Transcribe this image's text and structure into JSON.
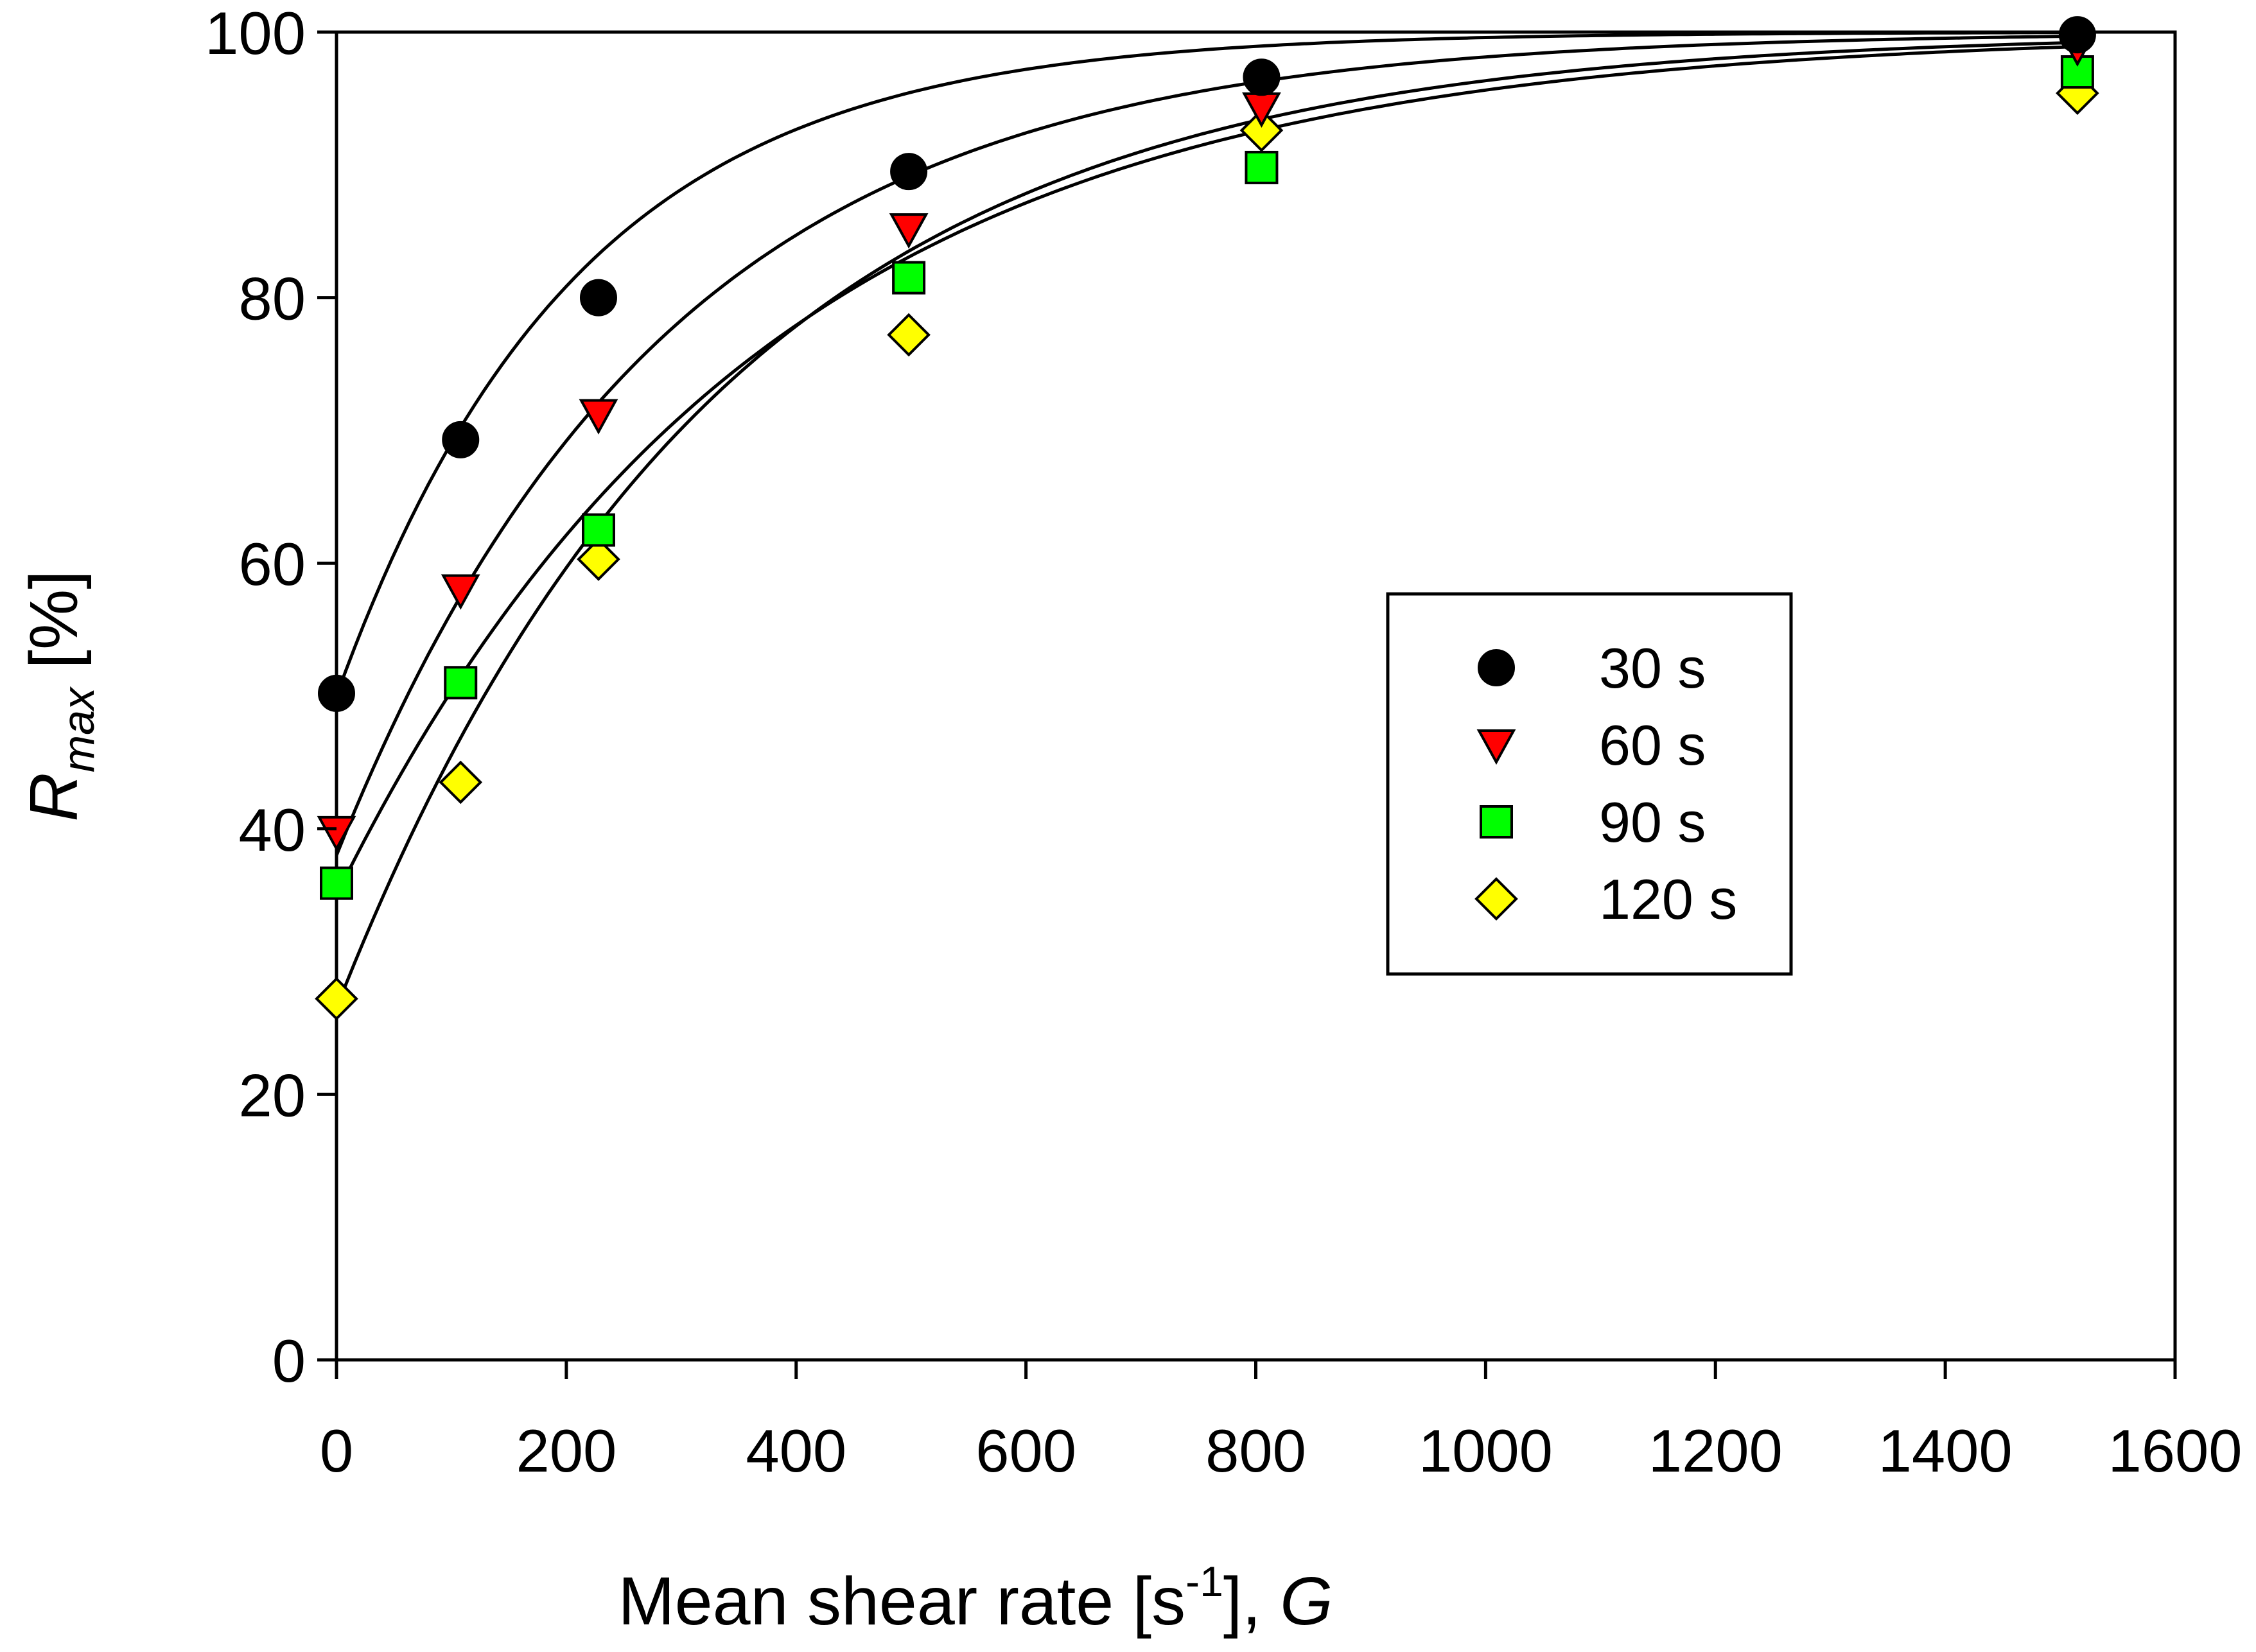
{
  "chart_data": {
    "type": "scatter",
    "title": "",
    "xlabel": {
      "main": "Mean shear rate [s",
      "sup": "-1",
      "tail": "], ",
      "italic": "G"
    },
    "ylabel": {
      "main": "R",
      "sub": "max",
      "tail": " [%]"
    },
    "xlim": [
      0,
      1600
    ],
    "ylim": [
      0,
      100
    ],
    "xticks": [
      0,
      200,
      400,
      600,
      800,
      1000,
      1200,
      1400,
      1600
    ],
    "yticks": [
      0,
      20,
      40,
      60,
      80,
      100
    ],
    "grid": false,
    "legend_position": "center-right",
    "x": [
      0,
      108,
      228,
      498,
      805,
      1515
    ],
    "series": [
      {
        "name": "30 s",
        "marker": "circle",
        "color": "#000000",
        "values": [
          50.2,
          69.3,
          80.0,
          89.5,
          96.6,
          99.8
        ],
        "fit": {
          "y0": 50,
          "k": 0.0048
        }
      },
      {
        "name": "60 s",
        "marker": "triangle-down",
        "color": "#ff0000",
        "values": [
          39.8,
          58.0,
          71.2,
          85.2,
          94.3,
          98.9
        ],
        "fit": {
          "y0": 38,
          "k": 0.0035
        }
      },
      {
        "name": "90 s",
        "marker": "square",
        "color": "#00ff00",
        "values": [
          35.9,
          51.0,
          62.5,
          81.5,
          89.8,
          97.0
        ],
        "fit": {
          "y0": 35,
          "k": 0.0027
        }
      },
      {
        "name": "120 s",
        "marker": "diamond",
        "color": "#ffff00",
        "values": [
          27.2,
          43.5,
          60.3,
          77.2,
          92.6,
          95.4
        ],
        "fit": {
          "y0": 26.5,
          "k": 0.003
        }
      }
    ]
  }
}
